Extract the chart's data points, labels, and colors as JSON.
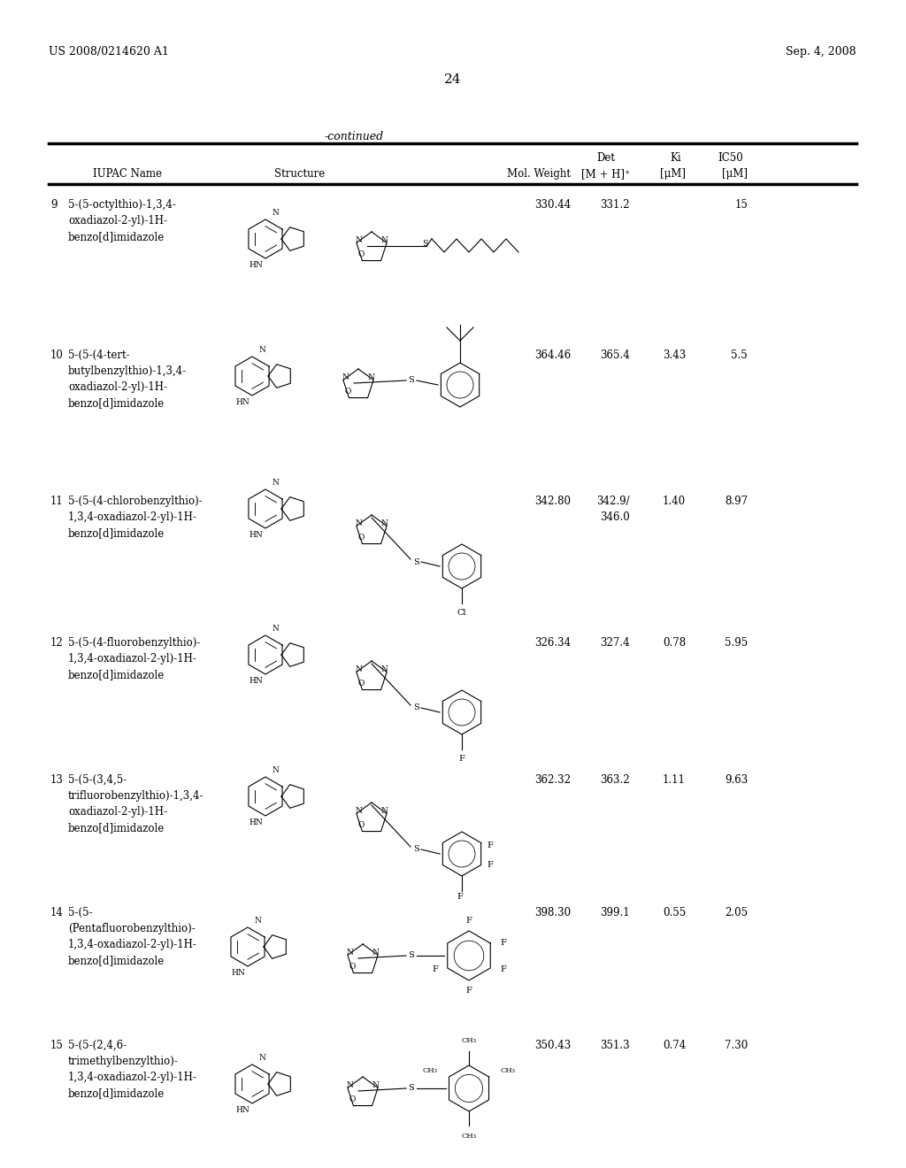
{
  "patent_number": "US 2008/0214620 A1",
  "date": "Sep. 4, 2008",
  "page_number": "24",
  "continued_label": "-continued",
  "header_cols": [
    "IUPAC Name",
    "Structure",
    "Mol. Weight",
    "Det\n[M + H]⁺",
    "Ki\n[μM]",
    "IC50\n[μM]"
  ],
  "col_header_line1": [
    "",
    "",
    "",
    "Det",
    "Ki",
    "IC50"
  ],
  "col_header_line2": [
    "IUPAC Name",
    "Structure",
    "Mol. Weight",
    "[M + H]⁺",
    "[μM]",
    "[μM]"
  ],
  "rows": [
    {
      "num": "9",
      "name": "5-(5-octylthio)-1,3,4-\noxadiazol-2-yl)-1H-\nbenzo[d]imidazole",
      "mol_weight": "330.44",
      "det": "331.2",
      "ki": "",
      "ic50": "15"
    },
    {
      "num": "10",
      "name": "5-(5-(4-tert-\nbutylbenzylthio)-1,3,4-\noxadiazol-2-yl)-1H-\nbenzo[d]imidazole",
      "mol_weight": "364.46",
      "det": "365.4",
      "ki": "3.43",
      "ic50": "5.5"
    },
    {
      "num": "11",
      "name": "5-(5-(4-chlorobenzylthio)-\n1,3,4-oxadiazol-2-yl)-1H-\nbenzo[d]imidazole",
      "mol_weight": "342.80",
      "det": "342.9/\n346.0",
      "ki": "1.40",
      "ic50": "8.97"
    },
    {
      "num": "12",
      "name": "5-(5-(4-fluorobenzylthio)-\n1,3,4-oxadiazol-2-yl)-1H-\nbenzo[d]imidazole",
      "mol_weight": "326.34",
      "det": "327.4",
      "ki": "0.78",
      "ic50": "5.95"
    },
    {
      "num": "13",
      "name": "5-(5-(3,4,5-\ntrifluorobenzylthio)-1,3,4-\noxadiazol-2-yl)-1H-\nbenzo[d]imidazole",
      "mol_weight": "362.32",
      "det": "363.2",
      "ki": "1.11",
      "ic50": "9.63"
    },
    {
      "num": "14",
      "name": "5-(5-\n(Pentafluorobenzylthio)-\n1,3,4-oxadiazol-2-yl)-1H-\nbenzo[d]imidazole",
      "mol_weight": "398.30",
      "det": "399.1",
      "ki": "0.55",
      "ic50": "2.05"
    },
    {
      "num": "15",
      "name": "5-(5-(2,4,6-\ntrimethylbenzylthio)-\n1,3,4-oxadiazol-2-yl)-1H-\nbenzo[d]imidazole",
      "mol_weight": "350.43",
      "det": "351.3",
      "ki": "0.74",
      "ic50": "7.30"
    }
  ],
  "bg_color": "#ffffff",
  "text_color": "#000000",
  "font_size_header": 9,
  "font_size_body": 8.5,
  "font_size_patent": 9
}
